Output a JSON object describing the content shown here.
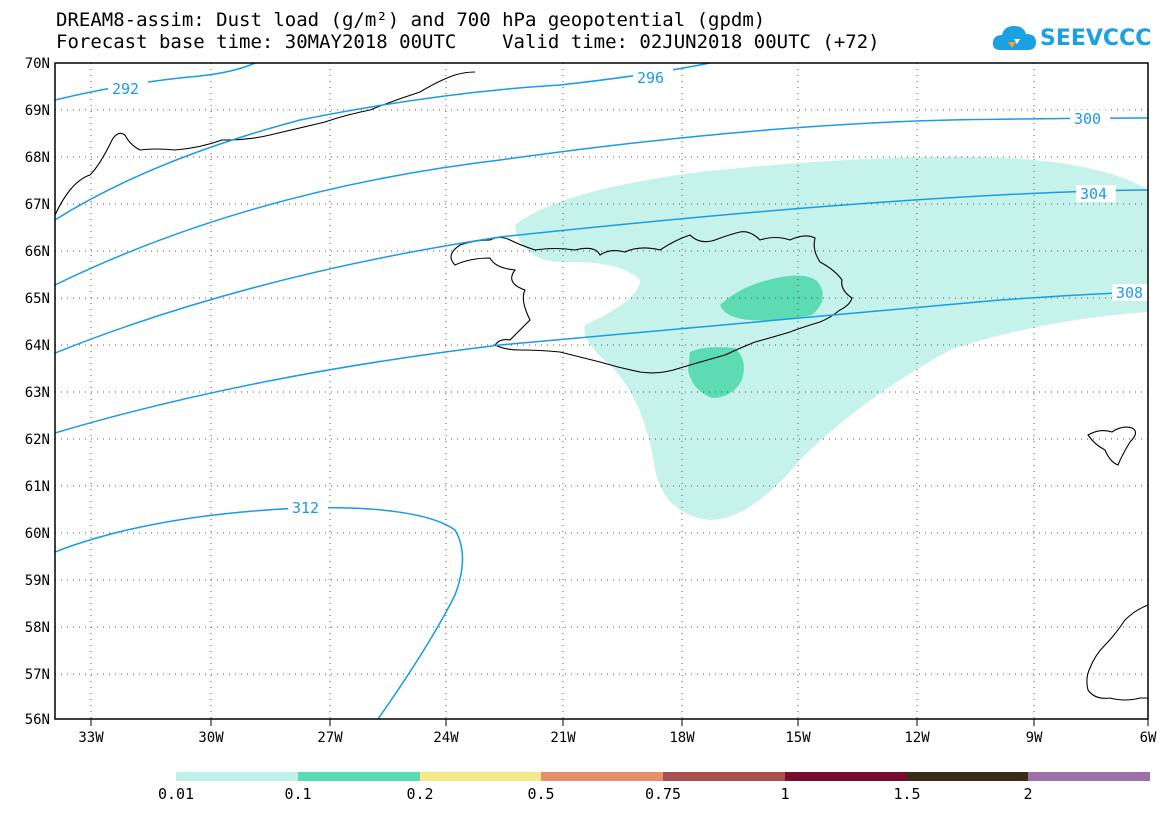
{
  "header": {
    "title_line1": "DREAM8-assim: Dust load (g/m²) and 700 hPa geopotential (gpdm)",
    "title_line2": "Forecast base time: 30MAY2018 00UTC    Valid time: 02JUN2018 00UTC (+72)",
    "logo_text": "SEEVCCC",
    "logo_icon": "cloud-icon"
  },
  "map": {
    "lat_labels": [
      "70N",
      "69N",
      "68N",
      "67N",
      "66N",
      "65N",
      "64N",
      "63N",
      "62N",
      "61N",
      "60N",
      "59N",
      "58N",
      "57N",
      "56N"
    ],
    "lon_labels": [
      "33W",
      "30W",
      "27W",
      "24W",
      "21W",
      "18W",
      "15W",
      "12W",
      "9W",
      "6W"
    ],
    "contour_labels": [
      "292",
      "296",
      "300",
      "304",
      "308",
      "312"
    ],
    "colors": {
      "contour": "#1a9be6",
      "coast": "#000000",
      "grid": "#555555"
    }
  },
  "legend": {
    "labels": [
      "0.01",
      "0.1",
      "0.2",
      "0.5",
      "0.75",
      "1",
      "1.5",
      "2"
    ],
    "colors": [
      "#c0f0ea",
      "#58dcb4",
      "#f6e98a",
      "#e8906c",
      "#a85050",
      "#7a0c30",
      "#3a2a18",
      "#9b6fa8"
    ]
  }
}
